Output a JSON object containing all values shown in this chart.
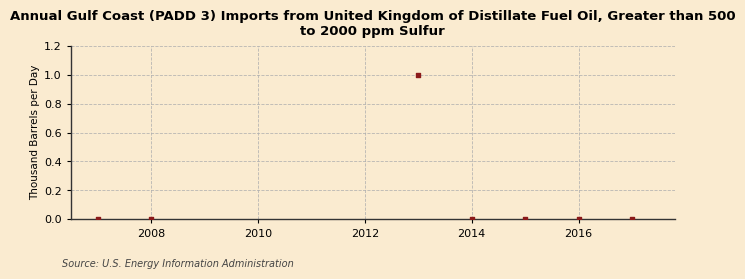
{
  "title": "Annual Gulf Coast (PADD 3) Imports from United Kingdom of Distillate Fuel Oil, Greater than 500\nto 2000 ppm Sulfur",
  "ylabel": "Thousand Barrels per Day",
  "source": "Source: U.S. Energy Information Administration",
  "background_color": "#faebd0",
  "x_data": [
    2007,
    2008,
    2013,
    2014,
    2015,
    2016,
    2017
  ],
  "y_data": [
    0.0,
    0.0,
    1.0,
    0.0,
    0.0,
    0.0,
    0.0
  ],
  "xlim": [
    2006.5,
    2017.8
  ],
  "ylim": [
    0.0,
    1.2
  ],
  "yticks": [
    0.0,
    0.2,
    0.4,
    0.6,
    0.8,
    1.0,
    1.2
  ],
  "xticks": [
    2008,
    2010,
    2012,
    2014,
    2016
  ],
  "marker_color": "#8b1a1a",
  "grid_color": "#b0b0b0",
  "title_fontsize": 9.5,
  "label_fontsize": 7.5,
  "tick_fontsize": 8,
  "source_fontsize": 7
}
